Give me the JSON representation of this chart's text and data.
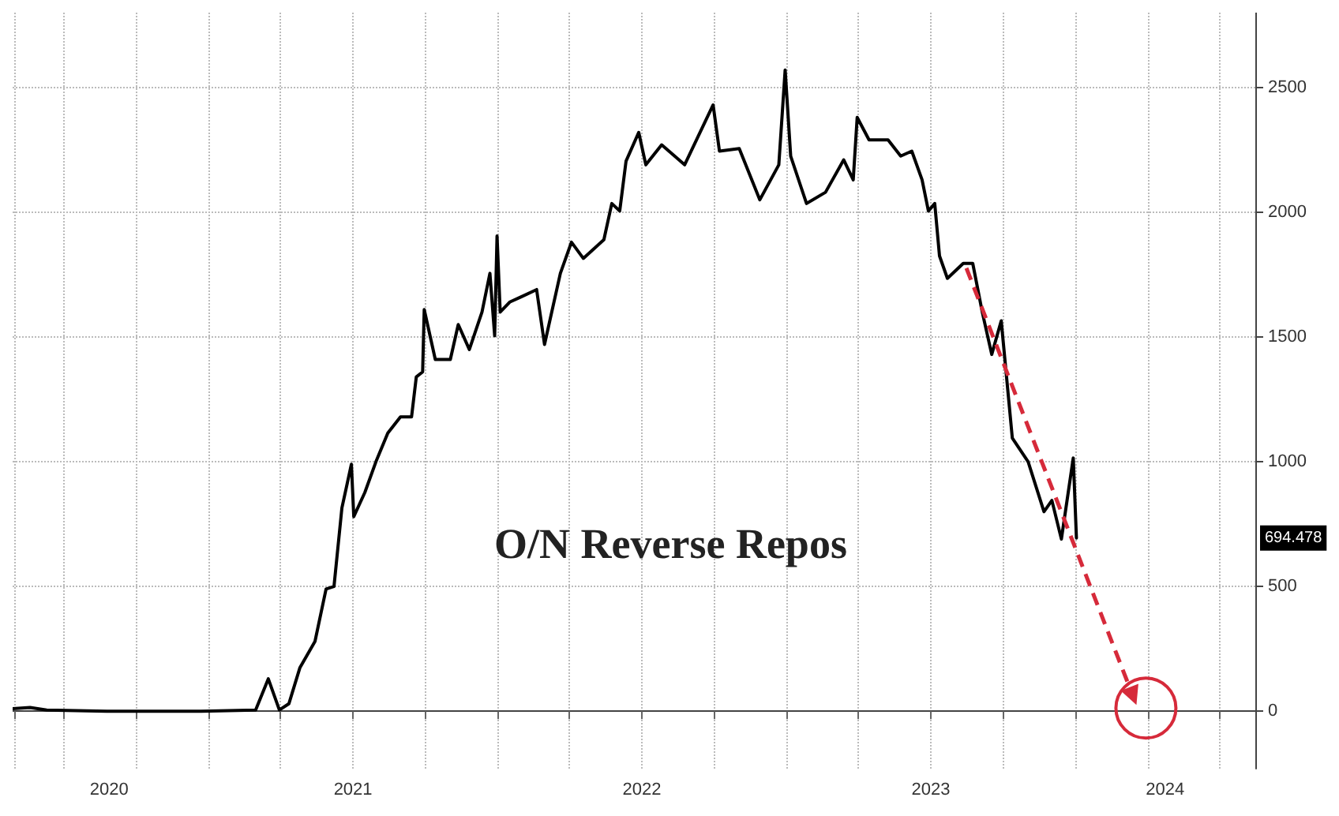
{
  "chart_data": {
    "type": "line",
    "title": "O/N Reverse Repos",
    "xlim": [
      "2020-04-28",
      "2024-08-15"
    ],
    "xticks": [
      {
        "value": "2020-05-01",
        "label": null
      },
      {
        "value": "2020-07-01",
        "label": null
      },
      {
        "value": "2020-08-28",
        "label": "2020"
      },
      {
        "value": "2020-10-01",
        "label": null
      },
      {
        "value": "2021-01-01",
        "label": null
      },
      {
        "value": "2021-04-01",
        "label": null
      },
      {
        "value": "2021-07-01",
        "label": null
      },
      {
        "value": "2021-07-02",
        "label": "2021"
      },
      {
        "value": "2021-10-01",
        "label": null
      },
      {
        "value": "2022-01-01",
        "label": null
      },
      {
        "value": "2022-04-01",
        "label": null
      },
      {
        "value": "2022-07-01",
        "label": null
      },
      {
        "value": "2022-07-02",
        "label": "2022"
      },
      {
        "value": "2022-10-01",
        "label": null
      },
      {
        "value": "2023-01-01",
        "label": null
      },
      {
        "value": "2023-04-01",
        "label": null
      },
      {
        "value": "2023-07-01",
        "label": null
      },
      {
        "value": "2023-07-02",
        "label": "2023"
      },
      {
        "value": "2023-10-01",
        "label": null
      },
      {
        "value": "2024-01-01",
        "label": null
      },
      {
        "value": "2024-04-01",
        "label": null
      },
      {
        "value": "2024-04-23",
        "label": "2024"
      },
      {
        "value": "2024-07-01",
        "label": null
      }
    ],
    "ylim": [
      -230,
      2800
    ],
    "yticks": [
      0,
      500,
      1000,
      1500,
      2000,
      2500
    ],
    "grid": true,
    "annotations": [
      "694.478"
    ],
    "series": [
      {
        "color": "#000000",
        "x": [
          "2020-04-28",
          "2020-05-20",
          "2020-06-10",
          "2020-08-25",
          "2020-12-22",
          "2021-03-01",
          "2021-03-17",
          "2021-03-31",
          "2021-04-12",
          "2021-04-26",
          "2021-05-15",
          "2021-05-29",
          "2021-06-08",
          "2021-06-18",
          "2021-06-30",
          "2021-07-03",
          "2021-07-17",
          "2021-07-31",
          "2021-08-15",
          "2021-08-31",
          "2021-09-14",
          "2021-09-20",
          "2021-09-28",
          "2021-09-30",
          "2021-10-14",
          "2021-11-02",
          "2021-11-12",
          "2021-11-26",
          "2021-12-12",
          "2021-12-22",
          "2021-12-28",
          "2021-12-31",
          "2022-01-04",
          "2022-01-16",
          "2022-01-30",
          "2022-02-19",
          "2022-03-01",
          "2022-03-21",
          "2022-04-04",
          "2022-04-19",
          "2022-05-15",
          "2022-05-25",
          "2022-06-04",
          "2022-06-12",
          "2022-06-28",
          "2022-07-07",
          "2022-07-27",
          "2022-08-25",
          "2022-09-30",
          "2022-10-08",
          "2022-11-02",
          "2022-11-28",
          "2022-12-22",
          "2022-12-30",
          "2023-01-06",
          "2023-01-26",
          "2023-02-19",
          "2023-03-14",
          "2023-03-26",
          "2023-03-31",
          "2023-04-15",
          "2023-05-09",
          "2023-05-25",
          "2023-06-08",
          "2023-06-21",
          "2023-06-29",
          "2023-07-07",
          "2023-07-13",
          "2023-07-23",
          "2023-08-12",
          "2023-08-24",
          "2023-09-05",
          "2023-09-17",
          "2023-09-29",
          "2023-10-13",
          "2023-11-02",
          "2023-11-22",
          "2023-12-02",
          "2023-12-14",
          "2023-12-29",
          "2024-01-02"
        ],
        "values": [
          10,
          15,
          5,
          0,
          0,
          5,
          130,
          5,
          30,
          175,
          280,
          490,
          500,
          815,
          990,
          780,
          877,
          1000,
          1115,
          1180,
          1180,
          1340,
          1360,
          1610,
          1410,
          1410,
          1550,
          1450,
          1600,
          1755,
          1505,
          1905,
          1600,
          1640,
          1660,
          1690,
          1470,
          1755,
          1880,
          1815,
          1890,
          2035,
          2005,
          2205,
          2320,
          2190,
          2270,
          2190,
          2430,
          2245,
          2255,
          2050,
          2190,
          2570,
          2225,
          2035,
          2080,
          2210,
          2130,
          2380,
          2290,
          2290,
          2225,
          2245,
          2130,
          2005,
          2035,
          1825,
          1735,
          1795,
          1795,
          1600,
          1430,
          1565,
          1095,
          1000,
          800,
          845,
          690,
          1015,
          694.478
        ]
      }
    ]
  }
}
